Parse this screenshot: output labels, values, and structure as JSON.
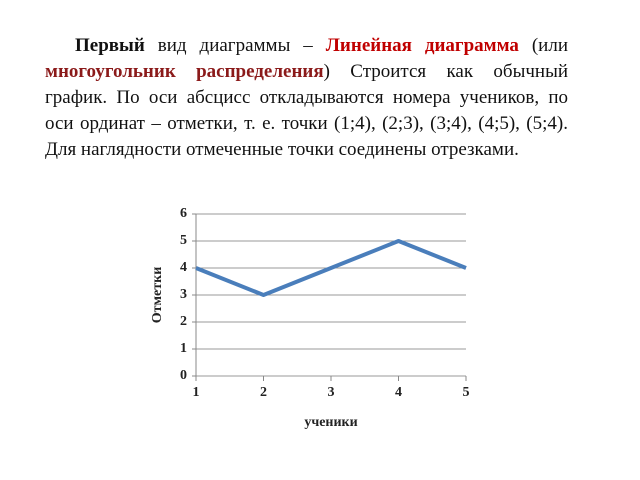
{
  "paragraph": [
    "Первый",
    " вид диаграммы – ",
    "Линейная диаграмма",
    " (или ",
    "многоугольник распределения",
    ") Строится как обычный график. По оси абсцисс откладываются номера учеников, по оси ординат – отметки, т. е. точки (1;4), (2;3), (3;4), (4;5), (5;4). Для наглядности отмеченные точки соединены отрезками."
  ],
  "chart_data": {
    "type": "line",
    "x": [
      1,
      2,
      3,
      4,
      5
    ],
    "values": [
      4,
      3,
      4,
      5,
      4
    ],
    "color": "#4a7ebb",
    "xlabel": "ученики",
    "ylabel": "Отметки",
    "xlim": [
      1,
      5
    ],
    "xticks": [
      1,
      2,
      3,
      4,
      5
    ],
    "ylim": [
      0,
      6
    ],
    "yticks": [
      0,
      1,
      2,
      3,
      4,
      5,
      6
    ],
    "grid": true
  }
}
